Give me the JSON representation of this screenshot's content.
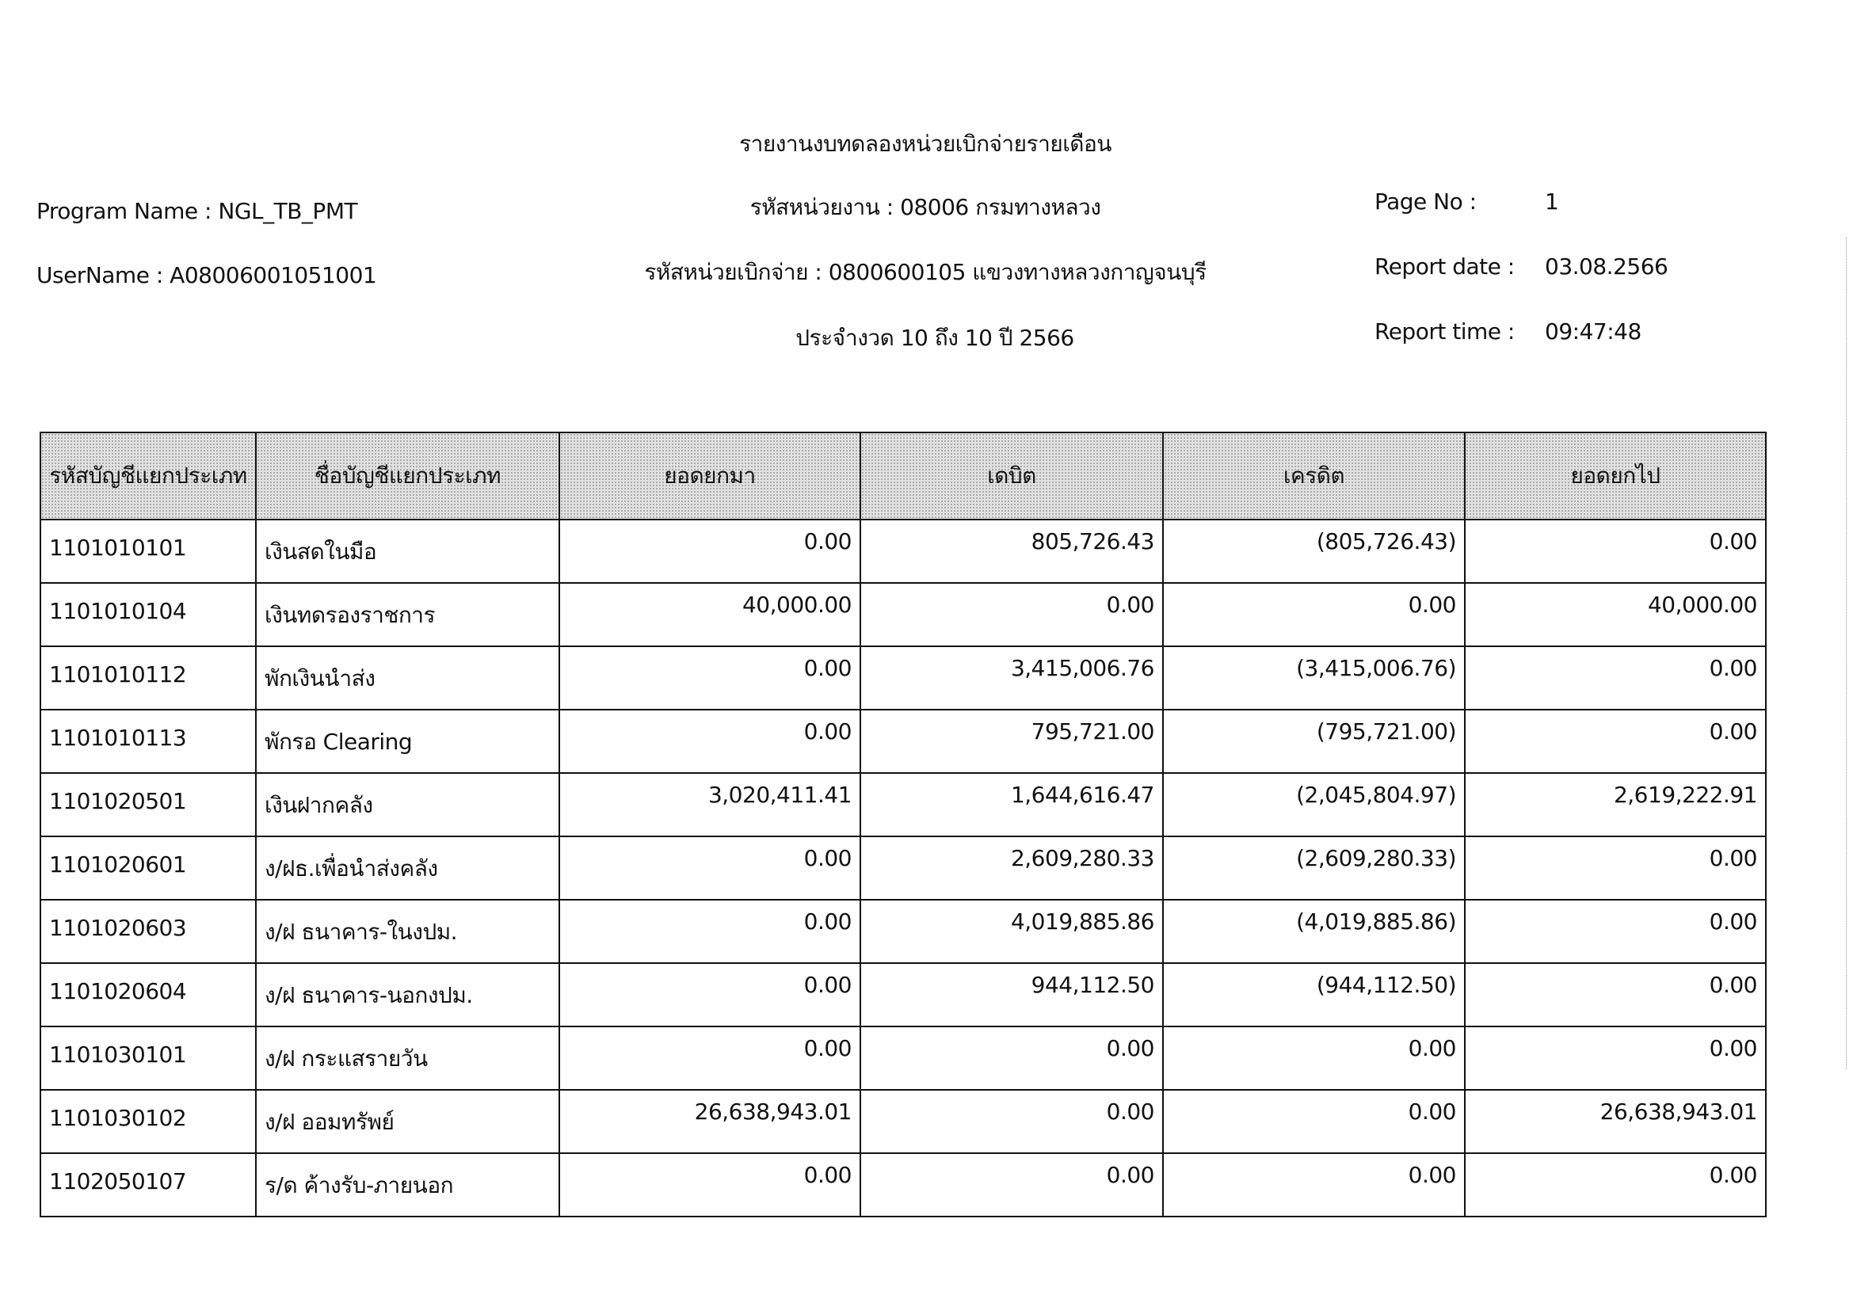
{
  "header": {
    "title": "รายงานงบทดลองหน่วยเบิกจ่ายรายเดือน",
    "agency": "รหัสหน่วยงาน : 08006 กรมทางหลวง",
    "disbursing_unit": "รหัสหน่วยเบิกจ่าย : 0800600105 แขวงทางหลวงกาญจนบุรี",
    "period": "ประจำงวด 10 ถึง 10 ปี 2566",
    "program_name": "Program Name : NGL_TB_PMT",
    "user_name": "UserName : A08006001051001",
    "page_no_label": "Page No :",
    "page_no": "1",
    "report_date_label": "Report date :",
    "report_date": "03.08.2566",
    "report_time_label": "Report time :",
    "report_time": "09:47:48"
  },
  "table": {
    "columns": [
      "รหัสบัญชีแยกประเภท",
      "ชื่อบัญชีแยกประเภท",
      "ยอดยกมา",
      "เดบิต",
      "เครดิต",
      "ยอดยกไป"
    ],
    "rows": [
      [
        "1101010101",
        "เงินสดในมือ",
        "0.00",
        "805,726.43",
        "(805,726.43)",
        "0.00"
      ],
      [
        "1101010104",
        "เงินทดรองราชการ",
        "40,000.00",
        "0.00",
        "0.00",
        "40,000.00"
      ],
      [
        "1101010112",
        "พักเงินนำส่ง",
        "0.00",
        "3,415,006.76",
        "(3,415,006.76)",
        "0.00"
      ],
      [
        "1101010113",
        "พักรอ Clearing",
        "0.00",
        "795,721.00",
        "(795,721.00)",
        "0.00"
      ],
      [
        "1101020501",
        "เงินฝากคลัง",
        "3,020,411.41",
        "1,644,616.47",
        "(2,045,804.97)",
        "2,619,222.91"
      ],
      [
        "1101020601",
        "ง/ฝธ.เพื่อนำส่งคลัง",
        "0.00",
        "2,609,280.33",
        "(2,609,280.33)",
        "0.00"
      ],
      [
        "1101020603",
        "ง/ฝ ธนาคาร-ในงปม.",
        "0.00",
        "4,019,885.86",
        "(4,019,885.86)",
        "0.00"
      ],
      [
        "1101020604",
        "ง/ฝ ธนาคาร-นอกงปม.",
        "0.00",
        "944,112.50",
        "(944,112.50)",
        "0.00"
      ],
      [
        "1101030101",
        "ง/ฝ กระแสรายวัน",
        "0.00",
        "0.00",
        "0.00",
        "0.00"
      ],
      [
        "1101030102",
        "ง/ฝ ออมทรัพย์",
        "26,638,943.01",
        "0.00",
        "0.00",
        "26,638,943.01"
      ],
      [
        "1102050107",
        "ร/ด ค้างรับ-ภายนอก",
        "0.00",
        "0.00",
        "0.00",
        "0.00"
      ]
    ]
  }
}
